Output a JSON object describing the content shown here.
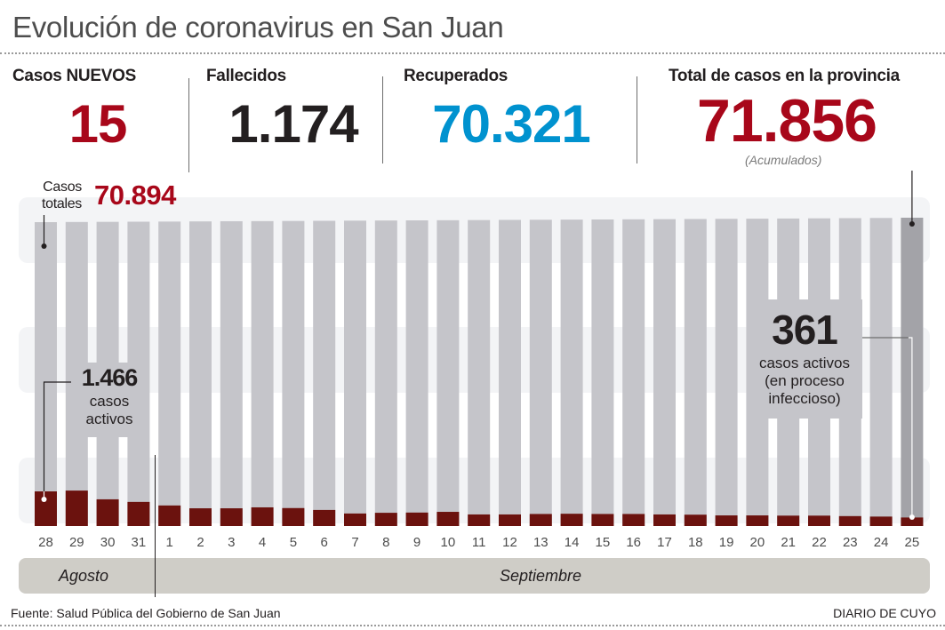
{
  "header": {
    "title": "Evolución de coronavirus en San Juan"
  },
  "stats": [
    {
      "label": "Casos NUEVOS",
      "value": "15",
      "color": "#a8071a"
    },
    {
      "label": "Fallecidos",
      "value": "1.174",
      "color": "#231f20"
    },
    {
      "label": "Recuperados",
      "value": "70.321",
      "color": "#0092cf"
    },
    {
      "label": "Total de casos en la provincia",
      "value": "71.856",
      "color": "#a8071a",
      "note": "(Acumulados)"
    }
  ],
  "annotations": {
    "total_start": {
      "label_line1": "Casos",
      "label_line2": "totales",
      "value": "70.894"
    },
    "active_start": {
      "value": "1.466",
      "line1": "casos",
      "line2": "activos"
    },
    "active_end": {
      "value": "361",
      "line1": "casos activos",
      "line2": "(en proceso",
      "line3": "infeccioso)"
    }
  },
  "months": [
    {
      "label": "Agosto"
    },
    {
      "label": "Septiembre"
    }
  ],
  "footer": {
    "source": "Fuente: Salud Pública del Gobierno de San Juan",
    "brand": "DIARIO DE CUYO"
  },
  "colors": {
    "total_bar": "#c5c5ca",
    "total_bar_last": "#a3a3a8",
    "active_bar": "#6b120e",
    "band": "#f3f4f6",
    "accent_red": "#a8071a",
    "accent_blue": "#0092cf"
  },
  "chart_data": {
    "type": "bar",
    "title": "Evolución de coronavirus en San Juan",
    "xlabel": "",
    "ylabel": "",
    "categories": [
      "28",
      "29",
      "30",
      "31",
      "1",
      "2",
      "3",
      "4",
      "5",
      "6",
      "7",
      "8",
      "9",
      "10",
      "11",
      "12",
      "13",
      "14",
      "15",
      "16",
      "17",
      "18",
      "19",
      "20",
      "21",
      "22",
      "23",
      "24",
      "25"
    ],
    "series": [
      {
        "name": "Casos totales",
        "values": [
          70894,
          70930,
          70960,
          70990,
          71020,
          71055,
          71090,
          71120,
          71150,
          71185,
          71220,
          71250,
          71280,
          71310,
          71345,
          71380,
          71410,
          71440,
          71475,
          71510,
          71540,
          71575,
          71610,
          71645,
          71680,
          71720,
          71760,
          71800,
          71856
        ]
      },
      {
        "name": "Casos activos",
        "values": [
          1466,
          1500,
          1130,
          1020,
          870,
          750,
          750,
          790,
          760,
          680,
          530,
          560,
          570,
          600,
          490,
          490,
          510,
          520,
          510,
          510,
          490,
          480,
          450,
          450,
          440,
          440,
          420,
          400,
          361
        ]
      }
    ],
    "overlay": true,
    "ylim": [
      0,
      72000
    ],
    "grid": false,
    "legend": "none"
  }
}
